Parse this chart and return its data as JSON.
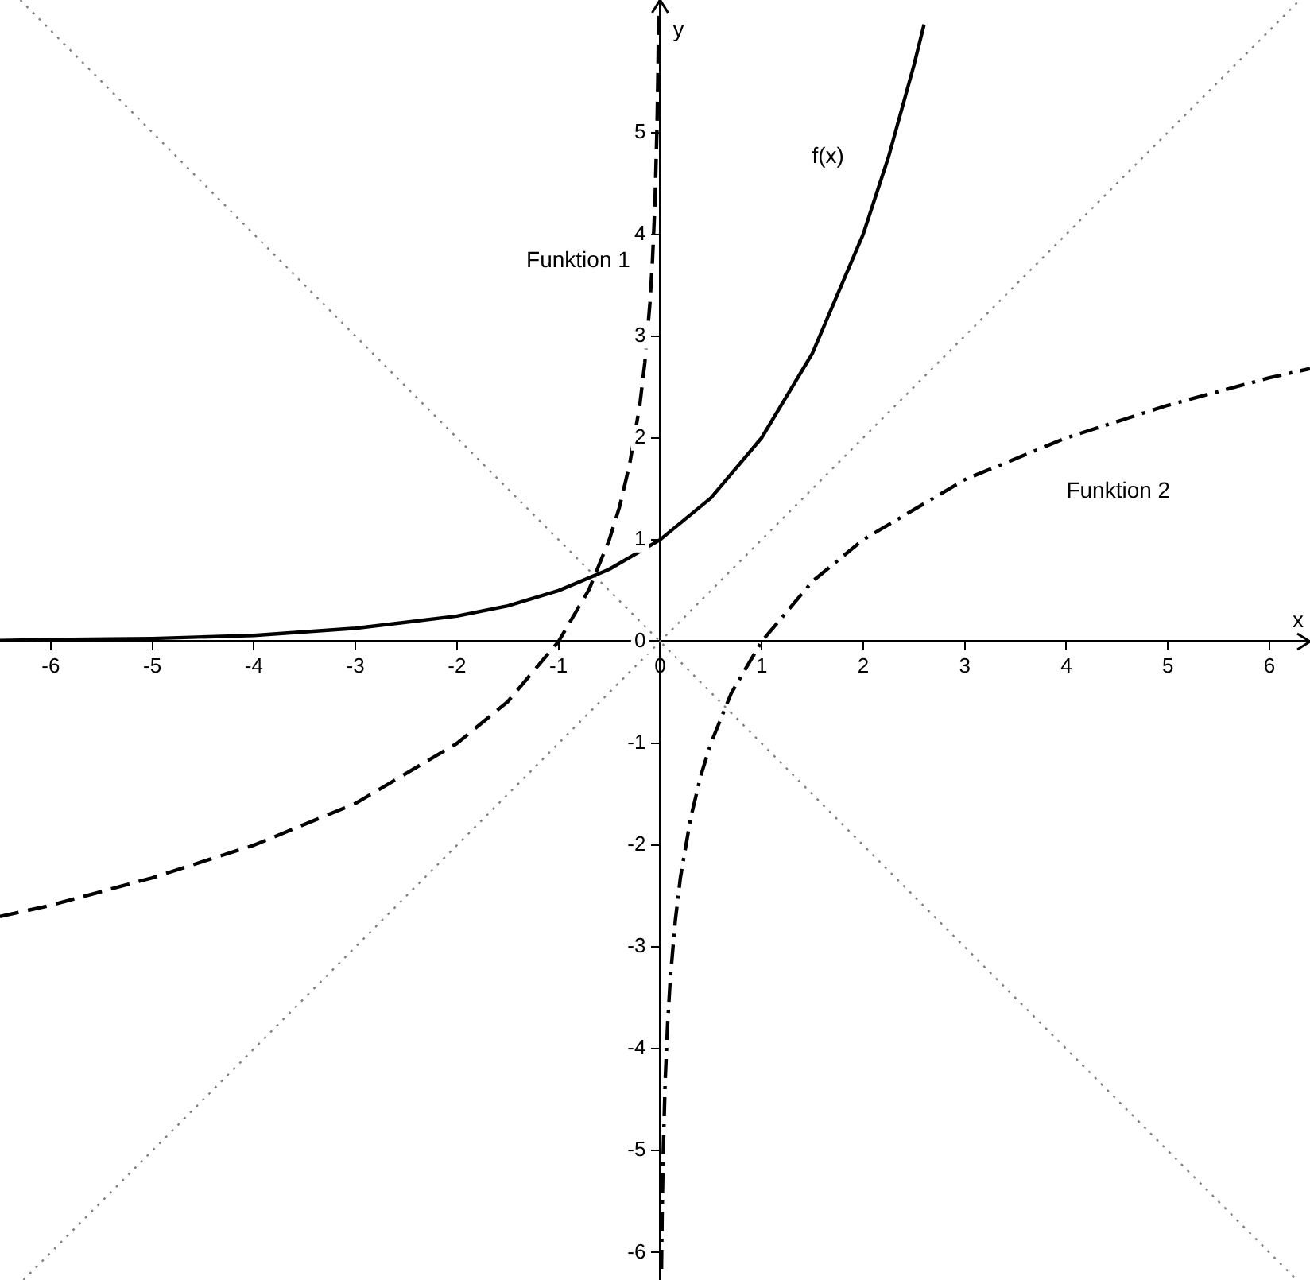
{
  "chart_data": {
    "type": "line",
    "xlabel": "x",
    "ylabel": "y",
    "xlim": [
      -6.5,
      6.4
    ],
    "ylim": [
      -6.27,
      6.3
    ],
    "xticks": [
      -6,
      -5,
      -4,
      -3,
      -2,
      -1,
      0,
      1,
      2,
      3,
      4,
      5,
      6
    ],
    "yticks": [
      -6,
      -5,
      -4,
      -3,
      -2,
      -1,
      0,
      1,
      2,
      3,
      4,
      5
    ],
    "grid": false,
    "legend": false,
    "marker": "none",
    "series": [
      {
        "name": "f(x)",
        "color": "#000000",
        "line_style": "solid",
        "x": [
          -6.5,
          -6,
          -5,
          -4,
          -3,
          -2,
          -1.5,
          -1,
          -0.5,
          0,
          0.5,
          1,
          1.5,
          2,
          2.25,
          2.5,
          2.6
        ],
        "values": [
          0.01,
          0.02,
          0.03,
          0.06,
          0.13,
          0.25,
          0.35,
          0.5,
          0.71,
          1,
          1.41,
          2,
          2.83,
          4,
          4.76,
          5.66,
          6.06
        ]
      },
      {
        "name": "Funktion 1",
        "color": "#000000",
        "line_style": "dashed",
        "x": [
          -6.5,
          -6,
          -5,
          -4,
          -3,
          -2,
          -1.5,
          -1,
          -0.7,
          -0.5,
          -0.4,
          -0.3,
          -0.2,
          -0.15,
          -0.1,
          -0.075,
          -0.05,
          -0.03,
          -0.02,
          -0.014
        ],
        "values": [
          -2.7,
          -2.59,
          -2.32,
          -2,
          -1.59,
          -1,
          -0.59,
          0,
          0.51,
          1,
          1.32,
          1.74,
          2.32,
          2.74,
          3.32,
          3.74,
          4.32,
          5.06,
          5.64,
          6.16
        ]
      },
      {
        "name": "Funktion 2",
        "color": "#000000",
        "line_style": "dashdot",
        "x": [
          0.014,
          0.02,
          0.03,
          0.05,
          0.075,
          0.1,
          0.15,
          0.2,
          0.3,
          0.4,
          0.5,
          0.7,
          1,
          1.5,
          2,
          3,
          4,
          5,
          6,
          6.4
        ],
        "values": [
          -6.16,
          -5.64,
          -5.06,
          -4.32,
          -3.74,
          -3.32,
          -2.74,
          -2.32,
          -1.74,
          -1.32,
          -1,
          -0.51,
          0,
          0.59,
          1,
          1.59,
          2,
          2.32,
          2.59,
          2.68
        ]
      },
      {
        "color": "#808080",
        "line_style": "dotted",
        "x": [
          -6.27,
          6.3
        ],
        "values": [
          -6.27,
          6.3
        ]
      },
      {
        "color": "#808080",
        "line_style": "dotted",
        "x": [
          -6.3,
          6.27
        ],
        "values": [
          6.3,
          -6.27
        ]
      }
    ]
  }
}
